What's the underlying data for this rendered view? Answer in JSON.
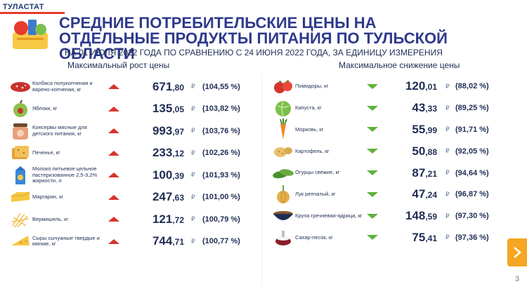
{
  "brand": "ТУЛАСТАТ",
  "title": "СРЕДНИЕ ПОТРЕБИТЕЛЬСКИЕ ЦЕНЫ НА ОТДЕЛЬНЫЕ ПРОДУКТЫ ПИТАНИЯ ПО ТУЛЬСКОЙ ОБЛАСТИ",
  "subtitle": "НА 01 ИЮЛЯ 2022 ГОДА ПО СРАВНЕНИЮ С 24 ИЮНЯ 2022 ГОДА, ЗА ЕДИНИЦУ ИЗМЕРЕНИЯ",
  "rise": {
    "heading": "Максимальный рост цены",
    "items": [
      {
        "label": "Колбаса полукопченая и варено-копченая, кг",
        "int": "671",
        "dec": ",80",
        "currency": "₽",
        "pct": "(104,55 %)",
        "icon": "sausage-icon"
      },
      {
        "label": "Яблоки, кг",
        "int": "135",
        "dec": ",05",
        "currency": "₽",
        "pct": "(103,82 %)",
        "icon": "apple-icon"
      },
      {
        "label": "Консервы мясные для детского питания, кг",
        "int": "993",
        "dec": ",97",
        "currency": "₽",
        "pct": "(103,76 %)",
        "icon": "baby-food-jar-icon"
      },
      {
        "label": "Печенье, кг",
        "int": "233",
        "dec": ",12",
        "currency": "₽",
        "pct": "(102,26 %)",
        "icon": "cookies-icon"
      },
      {
        "label": "Молоко питьевое цельное пастеризованное 2,5-3,2% жирности, л",
        "int": "100",
        "dec": ",39",
        "currency": "₽",
        "pct": "(101,93 %)",
        "icon": "milk-carton-icon"
      },
      {
        "label": "Маргарин, кг",
        "int": "247",
        "dec": ",63",
        "currency": "₽",
        "pct": "(101,00 %)",
        "icon": "margarine-icon"
      },
      {
        "label": "Вермишель, кг",
        "int": "121",
        "dec": ",72",
        "currency": "₽",
        "pct": "(100,79 %)",
        "icon": "vermicelli-icon"
      },
      {
        "label": "Сыры сычужные твердые и мягкие, кг",
        "int": "744",
        "dec": ",71",
        "currency": "₽",
        "pct": "(100,77 %)",
        "icon": "cheese-icon"
      }
    ]
  },
  "fall": {
    "heading": "Максимальное снижение цены",
    "items": [
      {
        "label": "Помидоры, кг",
        "int": "120",
        "dec": ",01",
        "currency": "₽",
        "pct": "(88,02 %)",
        "icon": "tomato-icon"
      },
      {
        "label": "Капуста, кг",
        "int": "43",
        "dec": ",33",
        "currency": "₽",
        "pct": "(89,25 %)",
        "icon": "cabbage-icon"
      },
      {
        "label": "Морковь, кг",
        "int": "55",
        "dec": ",99",
        "currency": "₽",
        "pct": "(91,71 %)",
        "icon": "carrot-icon"
      },
      {
        "label": "Картофель, кг",
        "int": "50",
        "dec": ",88",
        "currency": "₽",
        "pct": "(92,05 %)",
        "icon": "potato-icon"
      },
      {
        "label": "Огурцы свежие, кг",
        "int": "87",
        "dec": ",21",
        "currency": "₽",
        "pct": "(94,64 %)",
        "icon": "cucumber-icon"
      },
      {
        "label": "Лук репчатый, кг",
        "int": "47",
        "dec": ",24",
        "currency": "₽",
        "pct": "(96,87 %)",
        "icon": "onion-icon"
      },
      {
        "label": "Крупа гречневая-ядрица, кг",
        "int": "148",
        "dec": ",59",
        "currency": "₽",
        "pct": "(97,30 %)",
        "icon": "buckwheat-bowl-icon"
      },
      {
        "label": "Сахар-песок, кг",
        "int": "75",
        "dec": ",41",
        "currency": "₽",
        "pct": "(97,36 %)",
        "icon": "sugar-icon"
      }
    ]
  },
  "page_number": "3",
  "colors": {
    "accent": "#e63b2e",
    "title": "#2e3a8c",
    "up": "#d6332f",
    "down": "#5fb13c",
    "next": "#f5a623"
  }
}
